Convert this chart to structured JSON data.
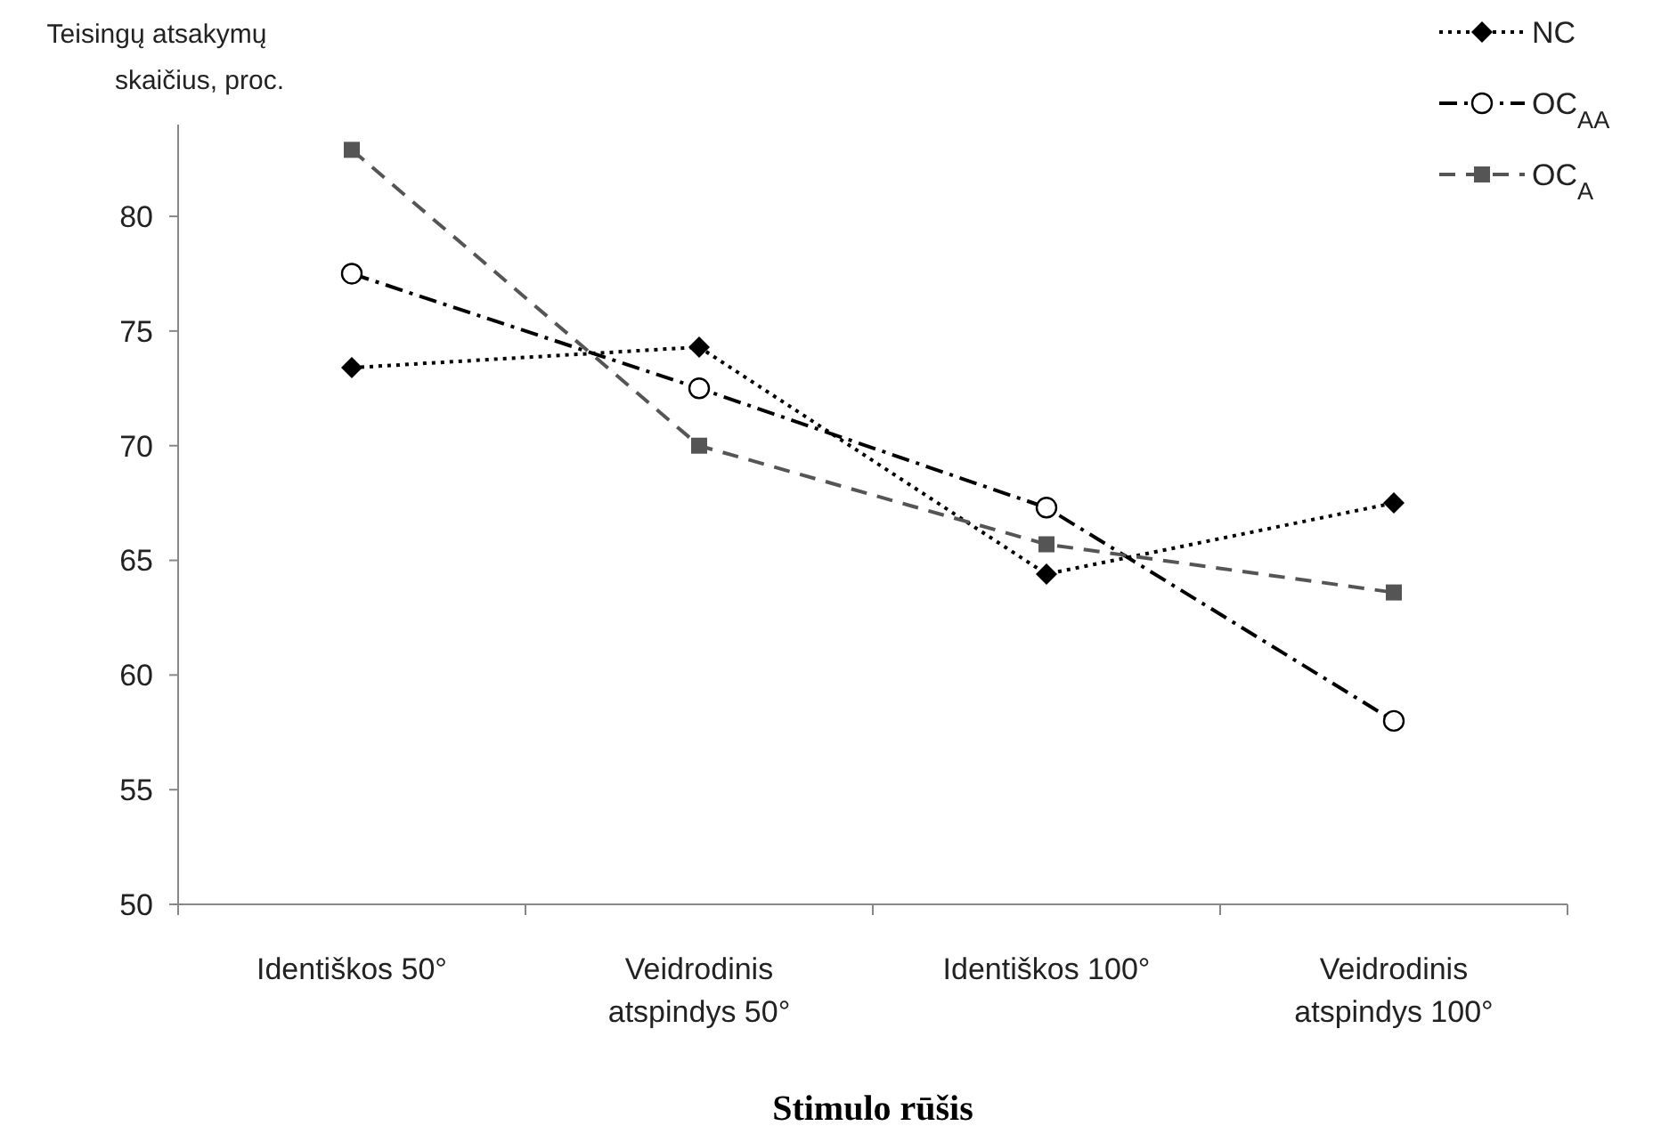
{
  "chart_data": {
    "type": "line",
    "xlabel": "Stimulo rūšis",
    "ylabel": "Teisingų atsakymų\nskaičius, proc.",
    "categories": [
      "Identiškos 50°",
      "Veidrodinis atspindys 50°",
      "Identiškos 100°",
      "Veidrodinis atspindys 100°"
    ],
    "ylim": [
      50,
      84
    ],
    "yticks": [
      50,
      55,
      60,
      65,
      70,
      75,
      80
    ],
    "grid": false,
    "legend": "top right",
    "series": [
      {
        "name": "NC",
        "color": "#000000",
        "marker": "diamond",
        "line_style": "dotted",
        "values": [
          73.4,
          74.3,
          64.4,
          67.5
        ]
      },
      {
        "name": "OC$_{AA}$",
        "color": "#000000",
        "marker": "circle",
        "line_style": "dashdot",
        "values": [
          77.5,
          72.5,
          67.3,
          58.0
        ]
      },
      {
        "name": "OC$_{A}$",
        "color": "#555555",
        "marker": "square",
        "line_style": "dashed",
        "values": [
          82.9,
          70.0,
          65.7,
          63.6
        ]
      }
    ]
  }
}
